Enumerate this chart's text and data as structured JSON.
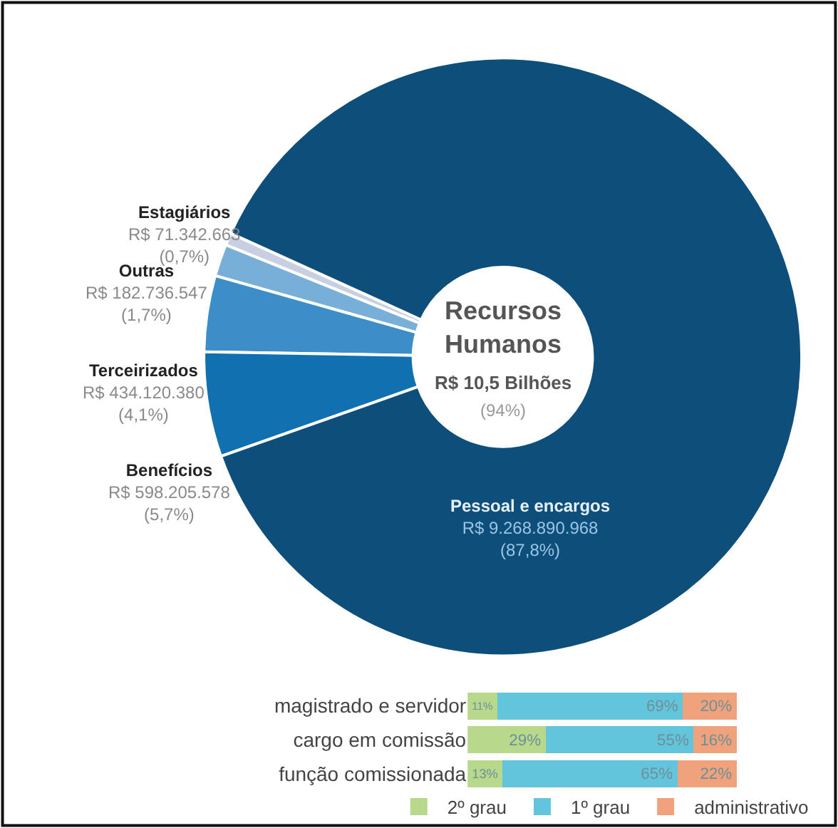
{
  "chart_data": [
    {
      "type": "donut",
      "title": "Recursos Humanos",
      "annotations": [
        "R$ 10,5 Bilhões",
        "(94%)"
      ],
      "categories": [
        "Estagiários",
        "Outras",
        "Terceirizados",
        "Benefícios",
        "Pessoal e encargos"
      ],
      "values": [
        71342663,
        182736547,
        434120380,
        598205578,
        9268890968
      ],
      "value_labels": [
        "R$ 71.342.663\n(0,7%)",
        "R$ 182.736.547\n(1,7%)",
        "R$ 434.120.380\n(4,1%)",
        "R$ 598.205.578\n(5,7%)",
        "R$ 9.268.890.968\n(87,8%)"
      ],
      "colors": [
        "#c9cfe2",
        "#78afd8",
        "#3d8ec8",
        "#1170b0",
        "#0d4e7a"
      ],
      "legend": false
    },
    {
      "type": "bar",
      "orientation": "horizontal",
      "stacked": true,
      "legend": "bottom",
      "categories": [
        "magistrado e servidor",
        "cargo em comissão",
        "função comissionada"
      ],
      "series": [
        {
          "name": "2º grau",
          "color": "#b8d98c",
          "values": [
            11,
            29,
            13
          ],
          "value_labels": [
            "11%",
            "29%",
            "13%"
          ]
        },
        {
          "name": "1º grau",
          "color": "#62c5dc",
          "values": [
            69,
            55,
            65
          ],
          "value_labels": [
            "69%",
            "55%",
            "65%"
          ]
        },
        {
          "name": "administrativo",
          "color": "#f0a27c",
          "values": [
            20,
            16,
            22
          ],
          "value_labels": [
            "20%",
            "16%",
            "22%"
          ]
        }
      ]
    }
  ]
}
